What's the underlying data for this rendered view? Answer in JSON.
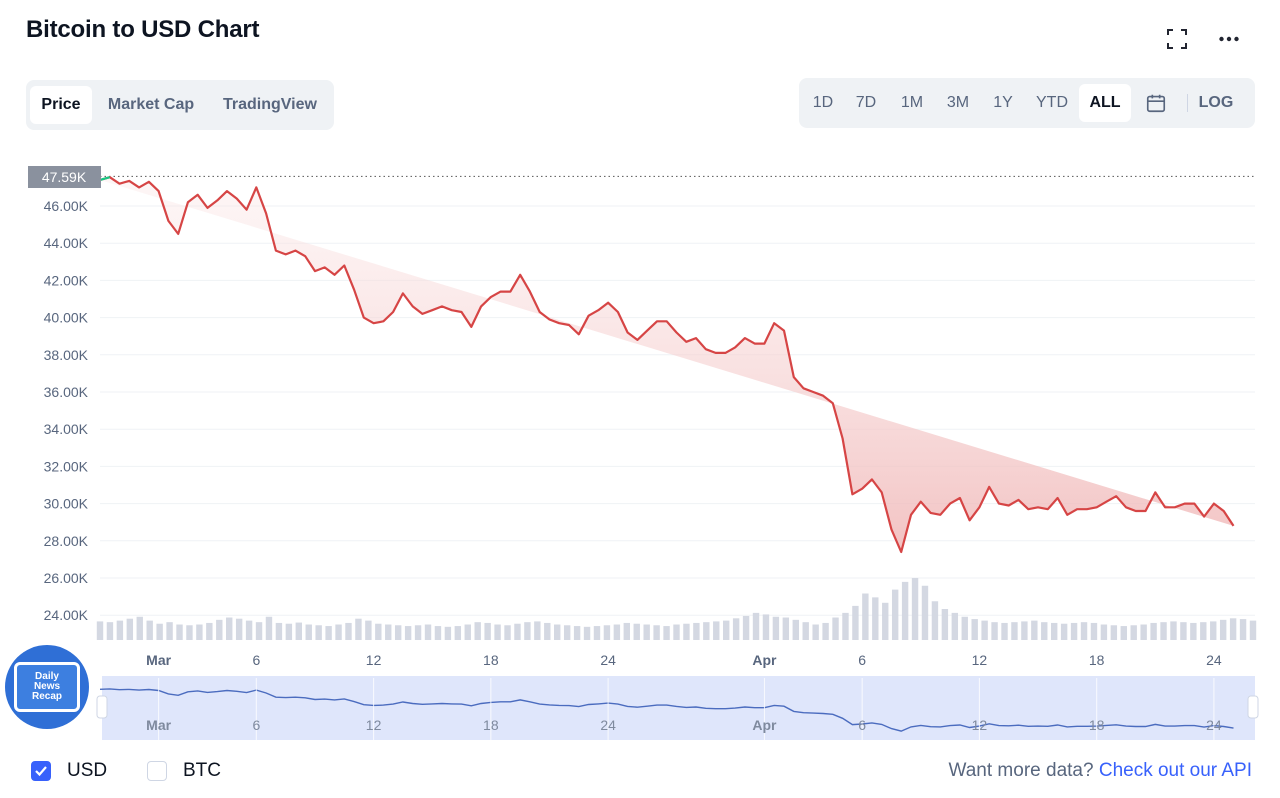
{
  "header": {
    "title": "Bitcoin to USD Chart",
    "fullscreen_icon": "expand-icon",
    "more_icon": "more-dots-icon"
  },
  "chart_tabs": [
    {
      "label": "Price",
      "active": true
    },
    {
      "label": "Market Cap",
      "active": false
    },
    {
      "label": "TradingView",
      "active": false
    }
  ],
  "range_tabs": [
    {
      "label": "1D",
      "active": false
    },
    {
      "label": "7D",
      "active": false
    },
    {
      "label": "1M",
      "active": false
    },
    {
      "label": "3M",
      "active": false
    },
    {
      "label": "1Y",
      "active": false
    },
    {
      "label": "YTD",
      "active": false
    },
    {
      "label": "ALL",
      "active": true
    }
  ],
  "calendar_icon": "calendar-icon",
  "log_label": "LOG",
  "current_price_label": "47.59K",
  "logo_text": [
    "Daily",
    "News",
    "Recap"
  ],
  "currency_options": [
    {
      "label": "USD",
      "checked": true
    },
    {
      "label": "BTC",
      "checked": false
    }
  ],
  "api_prompt": "Want more data?",
  "api_link": "Check out our API",
  "colors": {
    "price_line": "#d64545",
    "price_up_segment": "#16c784",
    "fill_top": "#f8dede",
    "volume_bar": "#cfd4df",
    "navigator_fill": "#dfe6fb",
    "navigator_line": "#4b6cbf",
    "accent": "#3861fb"
  },
  "chart_data": {
    "type": "line",
    "title": "",
    "x_tick_labels": [
      "Mar",
      "6",
      "12",
      "18",
      "24",
      "Apr",
      "6",
      "12",
      "18",
      "24"
    ],
    "x_tick_days": [
      29,
      34,
      40,
      46,
      52,
      60,
      65,
      71,
      77,
      83
    ],
    "y_tick_labels": [
      "46.00K",
      "44.00K",
      "42.00K",
      "40.00K",
      "38.00K",
      "36.00K",
      "34.00K",
      "32.00K",
      "30.00K",
      "28.00K",
      "26.00K",
      "24.00K"
    ],
    "y_ticks": [
      46000,
      44000,
      42000,
      40000,
      38000,
      36000,
      34000,
      32000,
      30000,
      28000,
      26000,
      24000
    ],
    "ylim": [
      23000,
      48500
    ],
    "reference_line": 47590,
    "series": [
      {
        "x_day": [
          26,
          26.5,
          27,
          27.5,
          28,
          28.5,
          29,
          29.5,
          30,
          30.5,
          31,
          31.5,
          32,
          32.5,
          33,
          33.5,
          34,
          34.5,
          35,
          35.5,
          36,
          36.5,
          37,
          37.5,
          38,
          38.5,
          39,
          39.5,
          40,
          40.5,
          41,
          41.5,
          42,
          42.5,
          43,
          43.5,
          44,
          44.5,
          45,
          45.5,
          46,
          46.5,
          47,
          47.5,
          48,
          48.5,
          49,
          49.5,
          50,
          50.5,
          51,
          51.5,
          52,
          52.5,
          53,
          53.5,
          54,
          54.5,
          55,
          55.5,
          56,
          56.5,
          57,
          57.5,
          58,
          58.5,
          59,
          59.5,
          60,
          60.5,
          61,
          61.5,
          62,
          62.5,
          63,
          63.5,
          64,
          64.5,
          65,
          65.5,
          66,
          66.5,
          67,
          67.5,
          68,
          68.5,
          69,
          69.5,
          70,
          70.5,
          71,
          71.5,
          72,
          72.5,
          73,
          73.5,
          74,
          74.5,
          75,
          75.5,
          76,
          76.5,
          77,
          77.5,
          78,
          78.5,
          79,
          79.5,
          80,
          80.5,
          81,
          81.5,
          82,
          82.5,
          83,
          83.5,
          84,
          84.5,
          85
        ],
        "price": [
          47400,
          47550,
          47200,
          47350,
          47000,
          47300,
          46800,
          45200,
          44500,
          46200,
          46600,
          45900,
          46300,
          46800,
          46400,
          45800,
          47000,
          45600,
          43600,
          43400,
          43600,
          43300,
          42500,
          42700,
          42300,
          42800,
          41500,
          40000,
          39700,
          39800,
          40300,
          41300,
          40600,
          40200,
          40400,
          40600,
          40400,
          40300,
          39500,
          40600,
          41100,
          41400,
          41400,
          42300,
          41400,
          40300,
          39900,
          39700,
          39600,
          39100,
          40100,
          40400,
          40800,
          40300,
          39200,
          38800,
          39300,
          39800,
          39800,
          39200,
          38700,
          38900,
          38300,
          38100,
          38100,
          38400,
          38900,
          38600,
          38600,
          39700,
          39300,
          36800,
          36200,
          36000,
          35800,
          35400,
          33500,
          30500,
          30800,
          31300,
          30600,
          28600,
          27400,
          29400,
          30100,
          29500,
          29400,
          30000,
          30300,
          29100,
          29800,
          30900,
          30000,
          29900,
          30200,
          29700,
          29800,
          29700,
          30300,
          29400,
          29700,
          29700,
          29800,
          30100,
          30400,
          29800,
          29600,
          29600,
          30600,
          29800,
          29800,
          30000,
          30000,
          29300,
          30000,
          29600,
          28800
        ],
        "volume_k": [
          48,
          46,
          50,
          55,
          60,
          50,
          42,
          46,
          40,
          38,
          40,
          44,
          52,
          58,
          55,
          50,
          46,
          60,
          44,
          42,
          45,
          40,
          38,
          36,
          40,
          44,
          55,
          50,
          42,
          40,
          38,
          36,
          38,
          40,
          36,
          34,
          36,
          40,
          46,
          44,
          40,
          38,
          42,
          46,
          48,
          44,
          40,
          38,
          36,
          34,
          36,
          38,
          40,
          44,
          42,
          40,
          38,
          36,
          40,
          42,
          44,
          46,
          48,
          50,
          56,
          62,
          70,
          66,
          60,
          58,
          52,
          46,
          40,
          44,
          58,
          70,
          88,
          120,
          110,
          96,
          130,
          150,
          160,
          140,
          100,
          80,
          70,
          60,
          54,
          50,
          46,
          44,
          46,
          48,
          50,
          46,
          44,
          42,
          44,
          46,
          44,
          40,
          38,
          36,
          38,
          40,
          44,
          46,
          48,
          46,
          44,
          46,
          48,
          52,
          56,
          54,
          50
        ]
      }
    ]
  }
}
